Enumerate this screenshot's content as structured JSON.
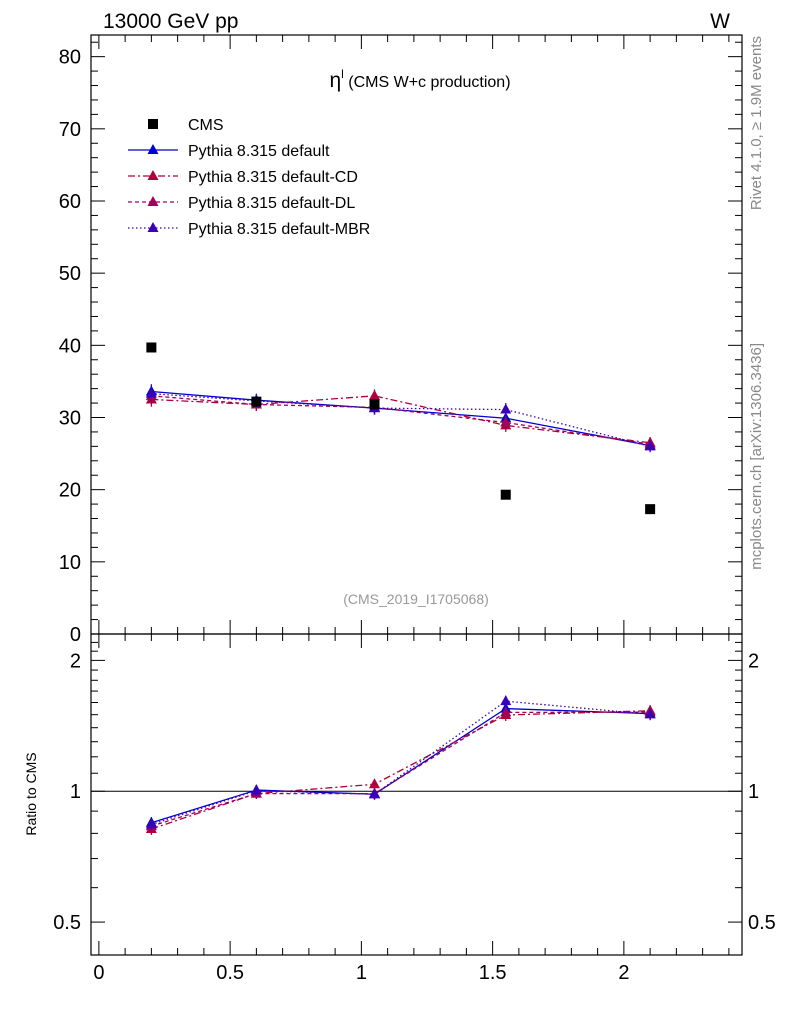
{
  "header": {
    "left": "13000 GeV pp",
    "right": "W"
  },
  "side": {
    "rivet": "Rivet 4.1.0, ≥ 1.9M events",
    "mcplots": "mcplots.cern.ch [arXiv:1306.3436]"
  },
  "colors": {
    "cms": "#000000",
    "default": "#0000cc",
    "cd": "#b0003a",
    "dl": "#a0005a",
    "mbr": "#3a00b8"
  },
  "chart_data": {
    "type": "line",
    "title_symbol": "η",
    "title_sup": "l",
    "title": "(CMS W+c production)",
    "watermark": "(CMS_2019_I1705068)",
    "xlabel": "",
    "ylabel": "",
    "ratio_ylabel": "Ratio to CMS",
    "xlim": [
      -0.03,
      2.45
    ],
    "ylim": [
      0,
      83
    ],
    "ratio_ylim": [
      0.42,
      2.3
    ],
    "x_ticks": [
      0,
      0.5,
      1,
      1.5,
      2
    ],
    "x_tick_labels": [
      "0",
      "0.5",
      "1",
      "1.5",
      "2"
    ],
    "y_ticks": [
      0,
      10,
      20,
      30,
      40,
      50,
      60,
      70,
      80
    ],
    "y_tick_labels": [
      "0",
      "10",
      "20",
      "30",
      "40",
      "50",
      "60",
      "70",
      "80"
    ],
    "ratio_ticks": [
      0.5,
      1,
      2
    ],
    "ratio_tick_labels": [
      "0.5",
      "1",
      "2"
    ],
    "x": [
      0.2,
      0.6,
      1.05,
      1.55,
      2.1
    ],
    "data": {
      "name": "CMS",
      "values": [
        39.7,
        32.2,
        31.8,
        19.3,
        17.3
      ]
    },
    "series": [
      {
        "key": "default",
        "name": "Pythia 8.315 default",
        "dash": "",
        "values": [
          33.6,
          32.4,
          31.3,
          29.9,
          26.1
        ],
        "errors": [
          1.0,
          0.9,
          0.9,
          0.9,
          0.8
        ]
      },
      {
        "key": "cd",
        "name": "Pythia 8.315 default-CD",
        "dash": "7,3,2,3",
        "values": [
          32.5,
          31.8,
          33.0,
          28.9,
          26.5
        ],
        "errors": [
          1.0,
          0.9,
          0.9,
          0.9,
          0.8
        ]
      },
      {
        "key": "dl",
        "name": "Pythia 8.315 default-DL",
        "dash": "4,3",
        "values": [
          33.0,
          31.8,
          31.4,
          29.3,
          26.3
        ],
        "errors": [
          1.0,
          0.9,
          0.9,
          0.9,
          0.8
        ]
      },
      {
        "key": "mbr",
        "name": "Pythia 8.315 default-MBR",
        "dash": "1.5,2.5",
        "values": [
          33.3,
          32.3,
          31.3,
          31.1,
          26.0
        ],
        "errors": [
          1.0,
          0.9,
          0.9,
          0.9,
          0.8
        ]
      }
    ]
  }
}
